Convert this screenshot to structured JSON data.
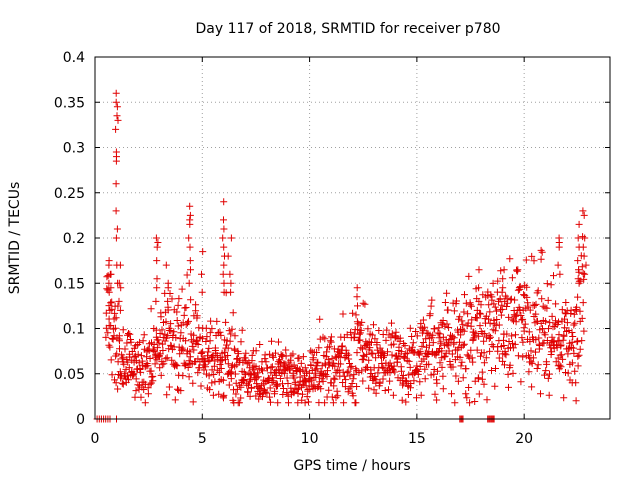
{
  "chart_data": {
    "type": "scatter",
    "title": "Day 117 of 2018, SRMTID for receiver p780",
    "xlabel": "GPS time / hours",
    "ylabel": "SRMTID / TECUs",
    "xlim": [
      0,
      24
    ],
    "ylim": [
      0,
      0.4
    ],
    "xticks": [
      0,
      5,
      10,
      15,
      20
    ],
    "yticks": [
      0,
      0.05,
      0.1,
      0.15,
      0.2,
      0.25,
      0.3,
      0.35,
      0.4
    ],
    "grid": true,
    "marker": "+",
    "color": "#e00000",
    "series": [
      {
        "name": "SRMTID",
        "anchors_x": [
          0.5,
          0.8,
          1.0,
          1.3,
          1.6,
          2.0,
          2.5,
          3.0,
          3.5,
          4.0,
          4.5,
          5.0,
          5.5,
          6.0,
          6.5,
          7.0,
          7.5,
          8.0,
          8.5,
          9.0,
          9.5,
          10.0,
          10.5,
          11.0,
          11.5,
          12.0,
          12.5,
          13.0,
          13.5,
          14.0,
          14.5,
          15.0,
          15.5,
          16.0,
          16.5,
          17.0,
          17.5,
          18.0,
          18.5,
          19.0,
          19.5,
          20.0,
          20.5,
          21.0,
          21.5,
          22.0,
          22.5,
          22.8
        ],
        "anchors_y": [
          0.13,
          0.1,
          0.08,
          0.065,
          0.06,
          0.055,
          0.07,
          0.08,
          0.085,
          0.09,
          0.085,
          0.07,
          0.065,
          0.075,
          0.065,
          0.05,
          0.045,
          0.045,
          0.05,
          0.045,
          0.045,
          0.05,
          0.055,
          0.06,
          0.065,
          0.07,
          0.07,
          0.07,
          0.065,
          0.065,
          0.07,
          0.07,
          0.075,
          0.08,
          0.085,
          0.085,
          0.09,
          0.09,
          0.095,
          0.11,
          0.115,
          0.1,
          0.1,
          0.1,
          0.095,
          0.09,
          0.11,
          0.14
        ],
        "spikes": [
          {
            "x": 0.7,
            "y": [
              0.14,
              0.16,
              0.17,
              0.175,
              0.15,
              0.145,
              0.12
            ]
          },
          {
            "x": 1.0,
            "y": [
              0.36,
              0.35,
              0.345,
              0.335,
              0.33,
              0.32,
              0.295,
              0.29,
              0.285,
              0.26,
              0.23,
              0.21,
              0.2,
              0.17,
              0.15
            ]
          },
          {
            "x": 1.2,
            "y": [
              0.17,
              0.15,
              0.145,
              0.13,
              0.12
            ]
          },
          {
            "x": 2.9,
            "y": [
              0.2,
              0.195,
              0.19,
              0.175,
              0.155,
              0.145,
              0.13
            ]
          },
          {
            "x": 3.4,
            "y": [
              0.17,
              0.15,
              0.145,
              0.13
            ]
          },
          {
            "x": 4.4,
            "y": [
              0.235,
              0.225,
              0.22,
              0.215,
              0.2,
              0.19,
              0.175,
              0.165,
              0.15
            ]
          },
          {
            "x": 5.0,
            "y": [
              0.185,
              0.16,
              0.14
            ]
          },
          {
            "x": 6.0,
            "y": [
              0.24,
              0.22,
              0.21,
              0.2,
              0.19,
              0.18,
              0.17,
              0.16,
              0.15,
              0.14
            ]
          },
          {
            "x": 6.3,
            "y": [
              0.2,
              0.18,
              0.16,
              0.15,
              0.14
            ]
          },
          {
            "x": 12.2,
            "y": [
              0.145,
              0.135,
              0.125,
              0.115
            ]
          },
          {
            "x": 17.9,
            "y": [
              0.145,
              0.13,
              0.12
            ]
          },
          {
            "x": 19.0,
            "y": [
              0.165,
              0.155,
              0.145,
              0.14,
              0.13
            ]
          },
          {
            "x": 21.6,
            "y": [
              0.2,
              0.195,
              0.19,
              0.17,
              0.16
            ]
          },
          {
            "x": 22.5,
            "y": [
              0.215,
              0.2,
              0.19,
              0.175,
              0.165,
              0.155,
              0.15
            ]
          },
          {
            "x": 22.8,
            "y": [
              0.23,
              0.225,
              0.2,
              0.19,
              0.18,
              0.17,
              0.16
            ]
          }
        ],
        "zeros_x": [
          0.1,
          0.2,
          0.3,
          0.4,
          0.5,
          0.6,
          0.7,
          1.0,
          17.0,
          17.05,
          17.1,
          17.15,
          18.3,
          18.35,
          18.4,
          18.45,
          18.5,
          18.55,
          18.6
        ]
      }
    ]
  }
}
